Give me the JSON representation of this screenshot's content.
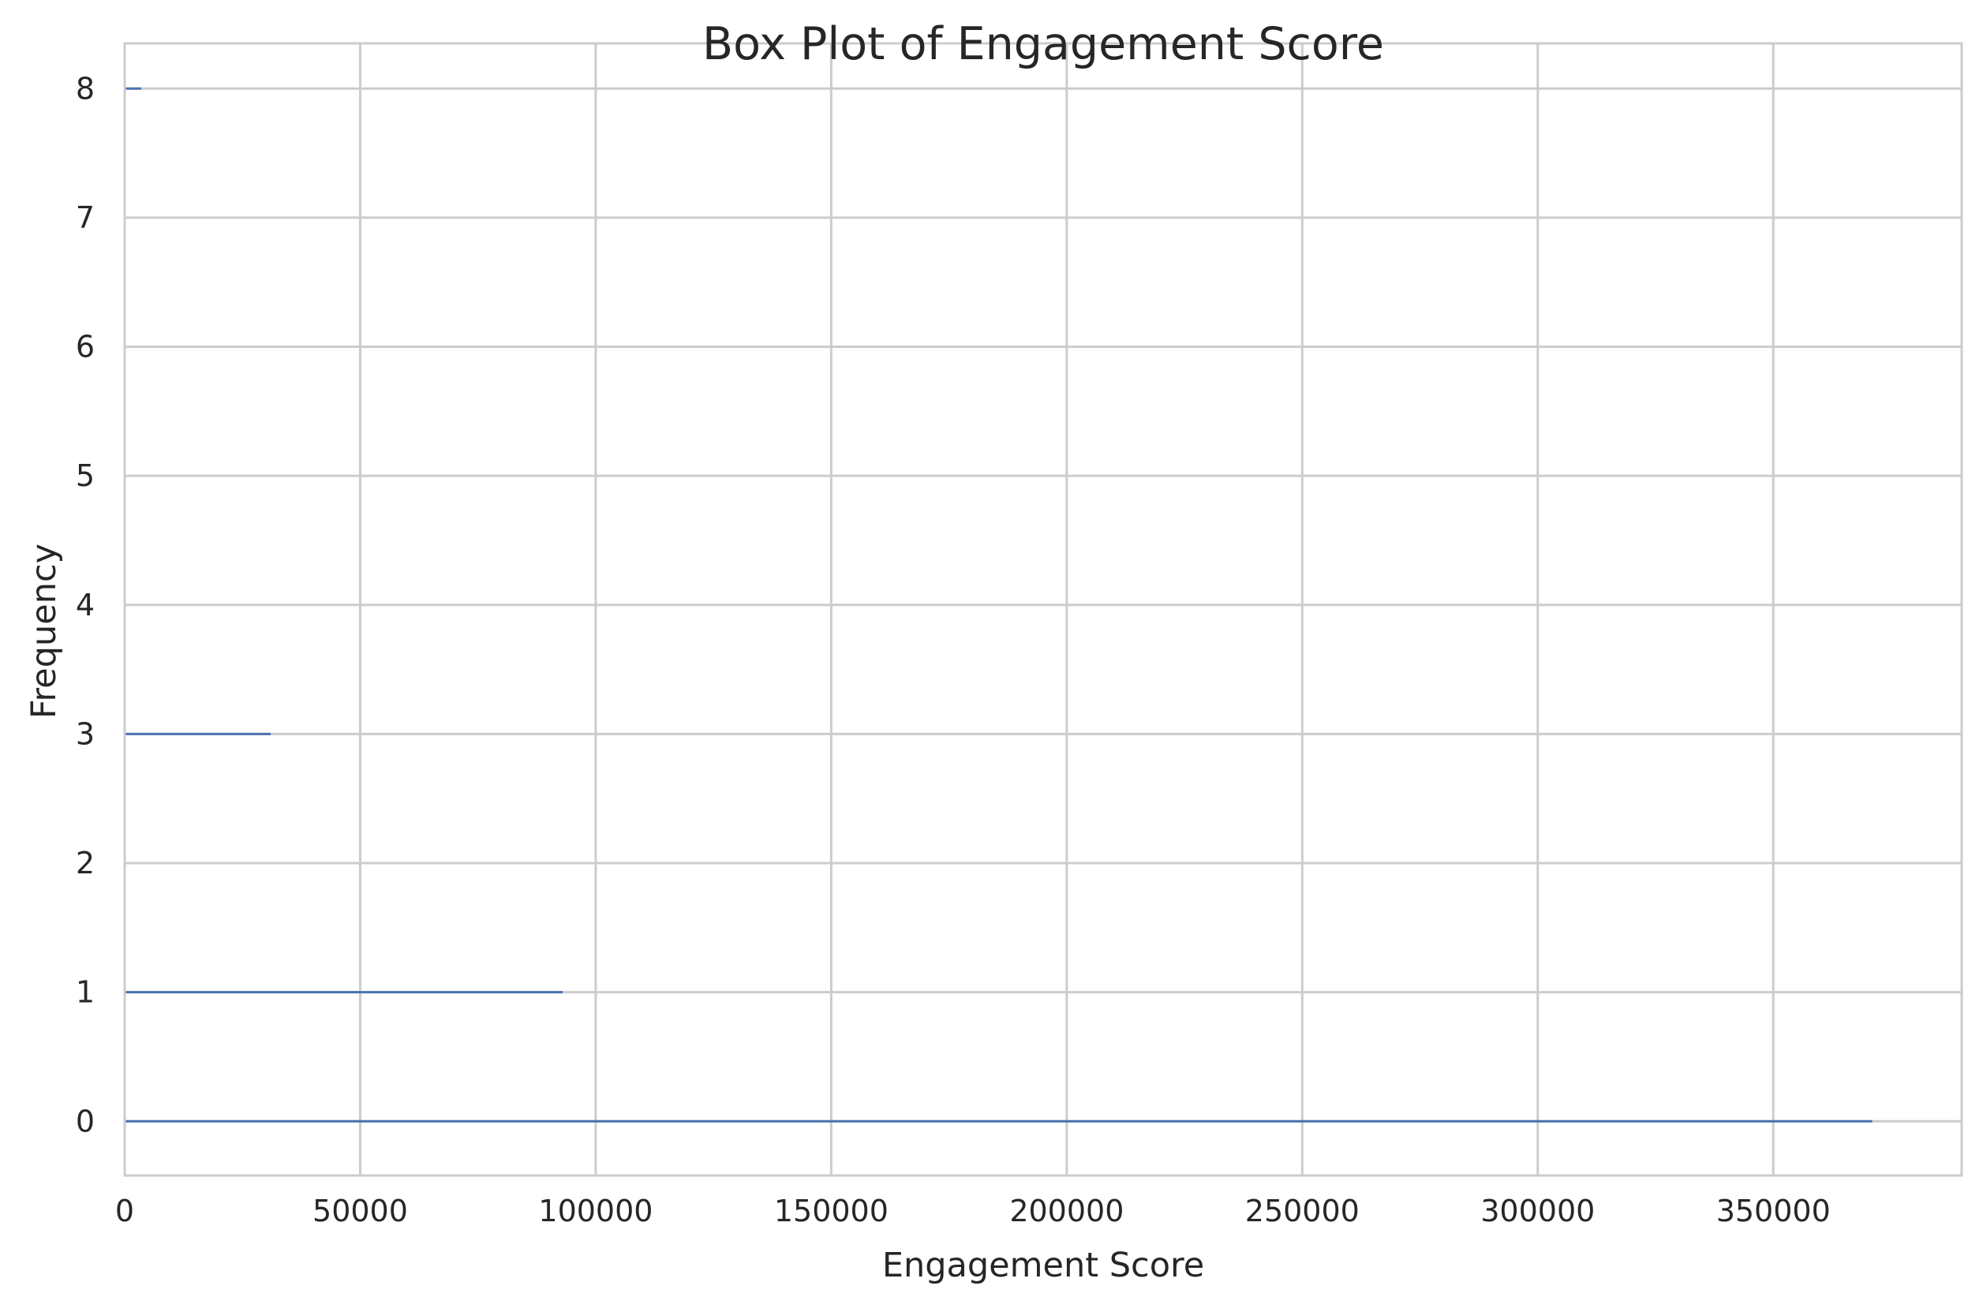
{
  "chart_data": {
    "type": "bar",
    "orientation": "horizontal",
    "title": "Box Plot of Engagement Score",
    "xlabel": "Engagement Score",
    "ylabel": "Frequency",
    "xlim": [
      0,
      390000
    ],
    "ylim": [
      -0.42,
      8.35
    ],
    "x_ticks": [
      0,
      50000,
      100000,
      150000,
      200000,
      250000,
      300000,
      350000
    ],
    "y_ticks": [
      0,
      1,
      2,
      3,
      4,
      5,
      6,
      7,
      8
    ],
    "grid": true,
    "legend": "none",
    "bars": [
      {
        "category": 0,
        "value": 371000
      },
      {
        "category": 1,
        "value": 93000
      },
      {
        "category": 3,
        "value": 31000
      },
      {
        "category": 8,
        "value": 3500
      }
    ],
    "colors": {
      "bar": "#4c72b0",
      "grid": "#cccccc",
      "spine": "#cccccc",
      "text": "#262626"
    }
  }
}
